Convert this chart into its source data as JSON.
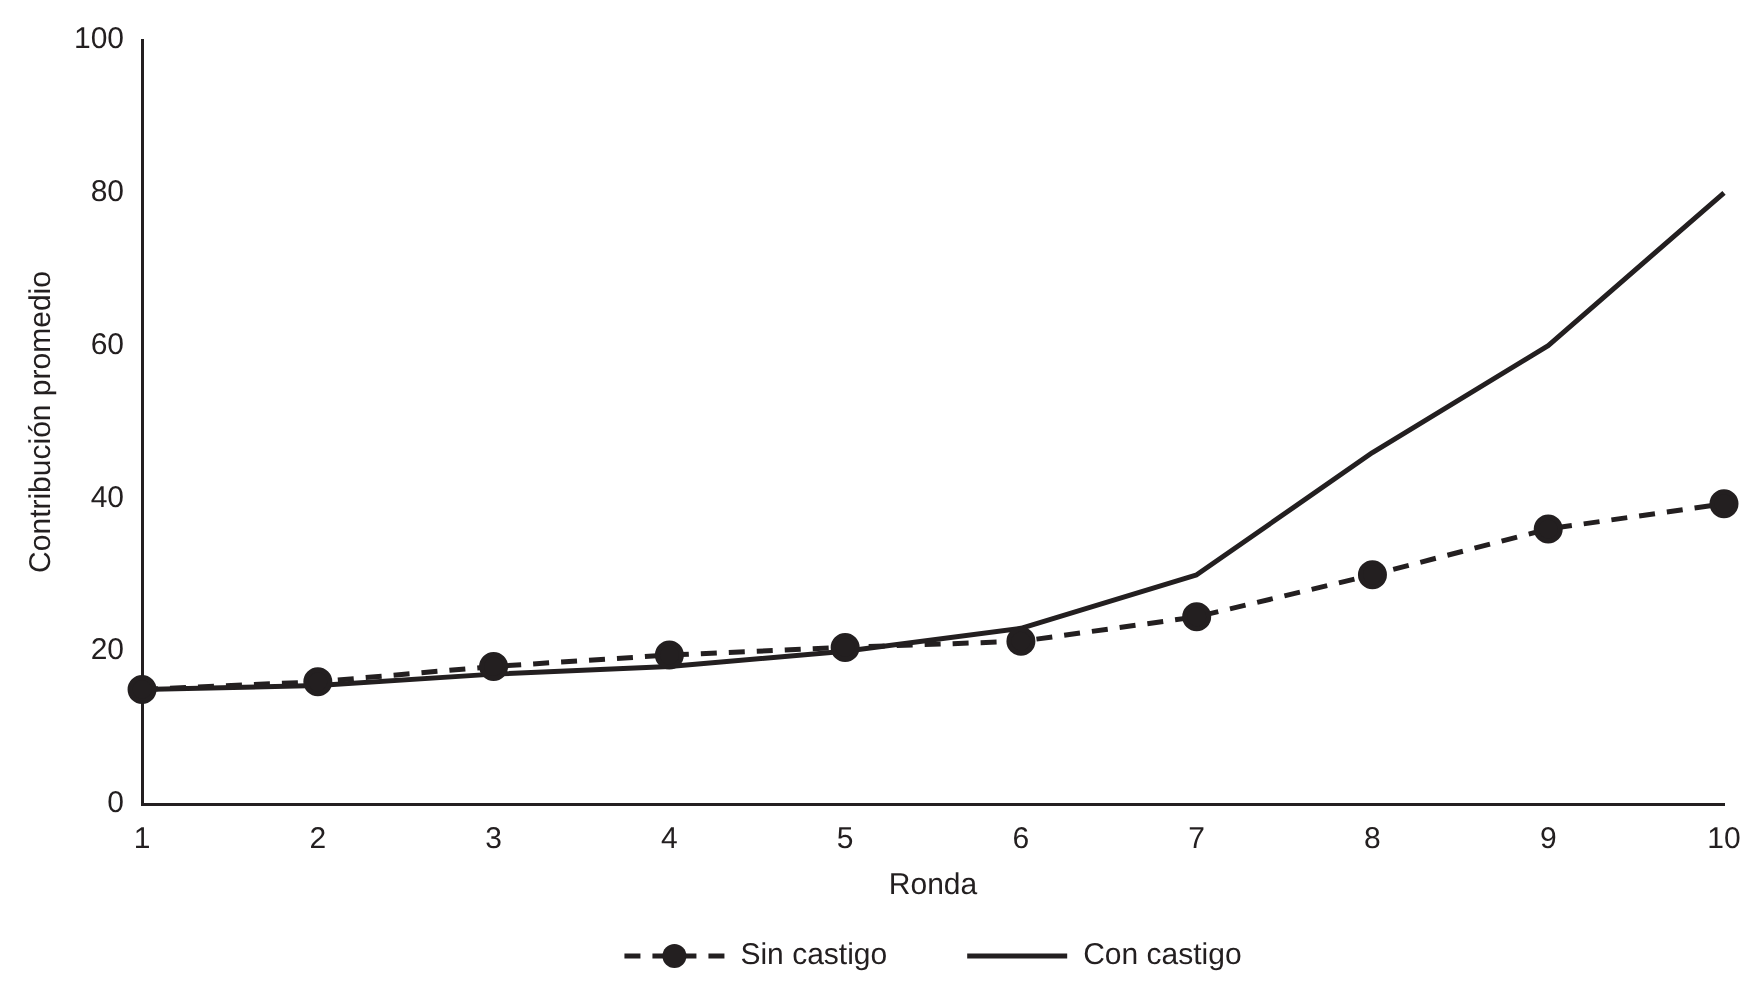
{
  "chart_data": {
    "type": "line",
    "xlabel": "Ronda",
    "ylabel": "Contribución promedio",
    "categories": [
      "1",
      "2",
      "3",
      "4",
      "5",
      "6",
      "7",
      "8",
      "9",
      "10"
    ],
    "ylim": [
      0,
      100
    ],
    "yticks": [
      0,
      20,
      40,
      60,
      80,
      100
    ],
    "grid": false,
    "legend": "bottom",
    "series": [
      {
        "name": "Sin castigo",
        "color": "#231f20",
        "values": [
          15,
          16,
          18,
          19.5,
          20.5,
          21.3,
          24.5,
          30,
          36,
          39.3
        ],
        "marker": "circle",
        "line_style": "dashed"
      },
      {
        "name": "Con castigo",
        "color": "#231f20",
        "values": [
          15,
          15.5,
          17,
          18,
          20,
          23,
          30,
          46,
          60,
          80
        ],
        "marker": "none",
        "line_style": "solid"
      }
    ]
  }
}
